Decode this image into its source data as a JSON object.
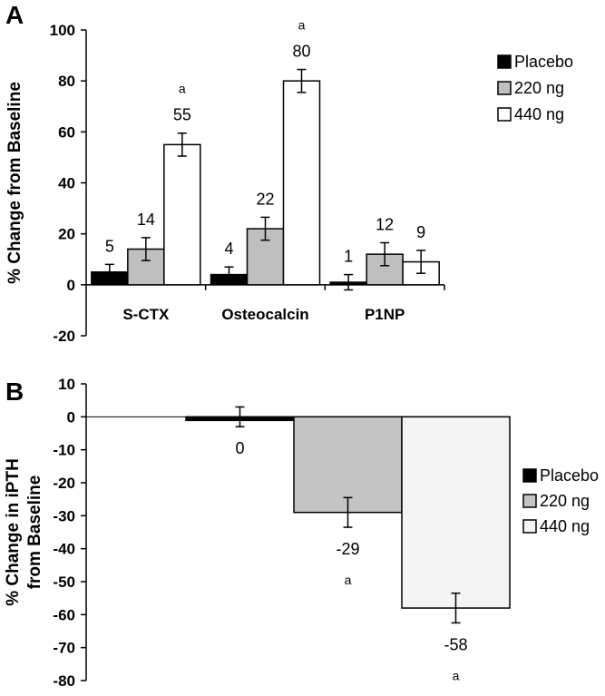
{
  "chart_data": [
    {
      "panel": "A",
      "type": "bar",
      "ylabel": "% Change from Baseline",
      "ylim": [
        -20,
        100
      ],
      "yticks": [
        "100",
        "80",
        "60",
        "40",
        "20",
        "0",
        "-20"
      ],
      "categories": [
        "S-CTX",
        "Osteocalcin",
        "P1NP"
      ],
      "series": [
        {
          "name": "Placebo",
          "color": "#000000",
          "values": [
            5,
            4,
            1
          ],
          "errors": [
            3,
            3,
            3
          ],
          "labels": [
            "5",
            "4",
            "1"
          ],
          "sig": [
            "",
            "",
            ""
          ]
        },
        {
          "name": "220 ng",
          "color": "#bfbfbf",
          "values": [
            14,
            22,
            12
          ],
          "errors": [
            4.5,
            4.5,
            4.5
          ],
          "labels": [
            "14",
            "22",
            "12"
          ],
          "sig": [
            "",
            "",
            ""
          ]
        },
        {
          "name": "440 ng",
          "color": "#ffffff",
          "values": [
            55,
            80,
            9
          ],
          "errors": [
            4.5,
            4.5,
            4.5
          ],
          "labels": [
            "55",
            "80",
            "9"
          ],
          "sig": [
            "a",
            "a",
            ""
          ]
        }
      ],
      "legend_position": "top-right",
      "grid": false
    },
    {
      "panel": "B",
      "type": "bar",
      "ylabel": [
        "% Change in iPTH",
        "from Baseline"
      ],
      "ylim": [
        -80,
        10
      ],
      "yticks": [
        "10",
        "0",
        "-10",
        "-20",
        "-30",
        "-40",
        "-50",
        "-60",
        "-70",
        "-80"
      ],
      "categories": [
        ""
      ],
      "series": [
        {
          "name": "Placebo",
          "color": "#000000",
          "values": [
            0
          ],
          "errors": [
            3
          ],
          "labels": [
            "0"
          ],
          "sig": [
            ""
          ]
        },
        {
          "name": "220 ng",
          "color": "#c4c4c4",
          "values": [
            -29
          ],
          "errors": [
            4.5
          ],
          "labels": [
            "-29"
          ],
          "sig": [
            "a"
          ]
        },
        {
          "name": "440 ng",
          "color": "#f4f4f4",
          "values": [
            -58
          ],
          "errors": [
            4.5
          ],
          "labels": [
            "-58"
          ],
          "sig": [
            "a"
          ]
        }
      ],
      "legend_position": "right",
      "grid": false
    }
  ]
}
